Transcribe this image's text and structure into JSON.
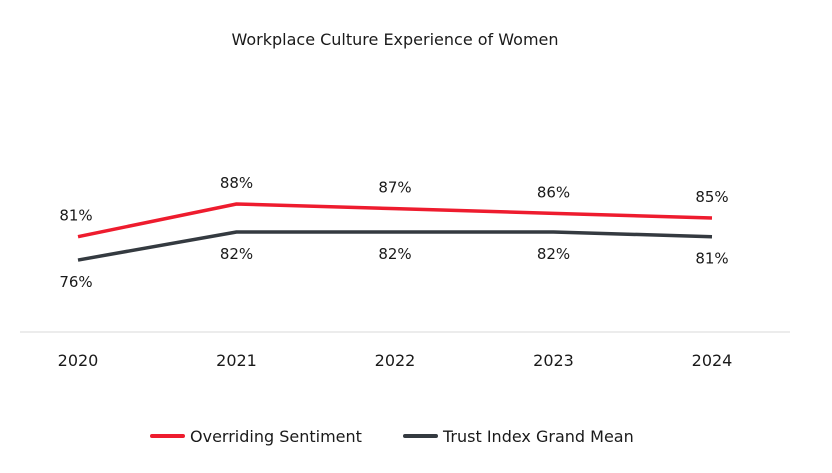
{
  "chart_data": {
    "type": "line",
    "title": "Workplace Culture Experience of Women",
    "xlabel": "",
    "ylabel": "",
    "categories": [
      "2020",
      "2021",
      "2022",
      "2023",
      "2024"
    ],
    "ylim": [
      70,
      95
    ],
    "grid": false,
    "legend_position": "bottom",
    "series": [
      {
        "name": "Overriding Sentiment",
        "color": "#ee1c2e",
        "values": [
          81,
          88,
          87,
          86,
          85
        ],
        "labels": [
          "81%",
          "88%",
          "87%",
          "86%",
          "85%"
        ],
        "label_placement": "above"
      },
      {
        "name": "Trust Index Grand Mean",
        "color": "#343a40",
        "values": [
          76,
          82,
          82,
          82,
          81
        ],
        "labels": [
          "76%",
          "82%",
          "82%",
          "82%",
          "81%"
        ],
        "label_placement": "below"
      }
    ]
  }
}
